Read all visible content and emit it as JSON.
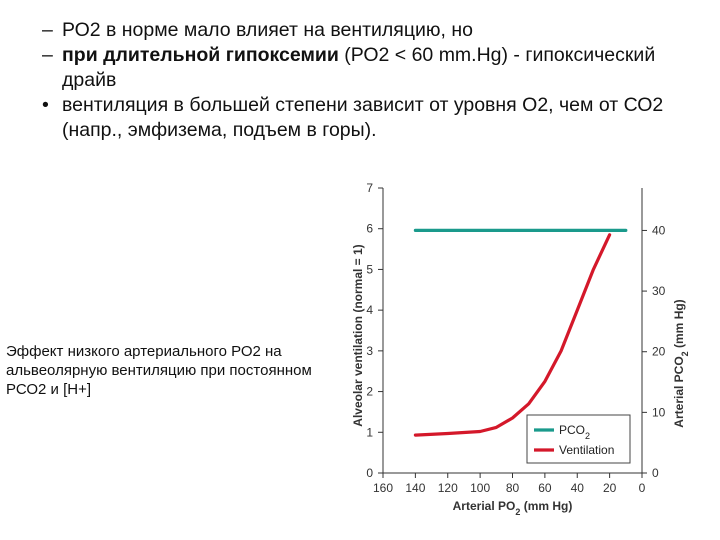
{
  "bullets": [
    {
      "marker": "–",
      "text": "РО2 в норме мало влияет на вентиляцию, но"
    },
    {
      "marker": "–",
      "bold_text": "при длительной гипоксемии",
      "text": " (РО2 < 60 mm.Hg) - гипоксический драйв"
    },
    {
      "marker": "•",
      "text": "вентиляция в большей степени зависит от  уровня О2, чем от СО2 (напр., эмфизема, подъем в горы)."
    }
  ],
  "caption": "Эффект низкого артериального РО2 на альвеолярную вентиляцию при постоянном РСО2 и  [Н+]",
  "colors": {
    "pco2": "#1a9a8c",
    "ventilation": "#d4182a",
    "axis": "#333333"
  },
  "chart_data": {
    "type": "line",
    "x_ticks": [
      "160",
      "140",
      "120",
      "100",
      "80",
      "60",
      "40",
      "20",
      "0"
    ],
    "xlim": [
      160,
      0
    ],
    "ylim_left": [
      0,
      7
    ],
    "ylim_right": [
      0,
      47
    ],
    "y_ticks_left": [
      "0",
      "1",
      "2",
      "3",
      "4",
      "5",
      "6",
      "7"
    ],
    "y_ticks_right": [
      "0",
      "10",
      "20",
      "30",
      "40"
    ],
    "xlabel": {
      "base": "Arterial PO",
      "sub": "2",
      "rest": " (mm Hg)"
    },
    "ylabel_left": "Alveolar ventilation (normal = 1)",
    "ylabel_right": {
      "base": "Arterial PCO",
      "sub": "2",
      "rest": " (mm Hg)"
    },
    "series": [
      {
        "name": "PCO2",
        "legend_base": "PCO",
        "legend_sub": "2",
        "axis": "right",
        "x": [
          140,
          10
        ],
        "y": [
          40,
          40
        ]
      },
      {
        "name": "Ventilation",
        "legend_base": "Ventilation",
        "legend_sub": "",
        "axis": "left",
        "x": [
          140,
          120,
          100,
          90,
          80,
          70,
          60,
          50,
          40,
          30,
          20
        ],
        "y": [
          0.93,
          0.97,
          1.02,
          1.12,
          1.35,
          1.7,
          2.25,
          3.0,
          4.0,
          5.0,
          5.85
        ]
      }
    ],
    "legend_position": "bottom-right"
  }
}
